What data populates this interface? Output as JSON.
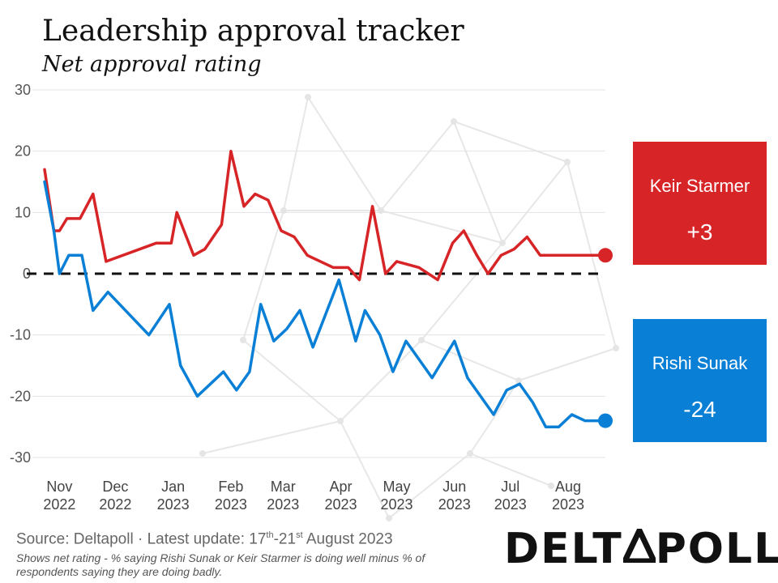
{
  "header": {
    "title": "Leadership approval tracker",
    "subtitle": "Net approval rating"
  },
  "colors": {
    "starmer": "#d62427",
    "sunak": "#0a7fd6",
    "zero_line": "#111111",
    "grid": "#e3e3e3"
  },
  "cards": {
    "starmer": {
      "name": "Keir Starmer",
      "value": "+3"
    },
    "sunak": {
      "name": "Rishi Sunak",
      "value": "-24"
    }
  },
  "footer": {
    "source_prefix": "Source: Deltapoll · Latest update: 17",
    "sup1": "th",
    "mid": "-21",
    "sup2": "st",
    "source_suffix": " August 2023",
    "note": "Shows net rating - % saying Rishi Sunak or Keir Starmer is doing well minus % of respondents saying they are doing badly.",
    "logo_left": "DELT",
    "logo_right": "POLL"
  },
  "chart_data": {
    "type": "line",
    "title": "Leadership approval tracker",
    "subtitle": "Net approval rating",
    "ylim": [
      -30,
      30
    ],
    "yticks": [
      30,
      20,
      10,
      0,
      -10,
      -20,
      -30
    ],
    "xlim": [
      "2022-10-24",
      "2023-08-21"
    ],
    "xticks": [
      {
        "date": "2022-11-01",
        "line1": "Nov",
        "line2": "2022"
      },
      {
        "date": "2022-12-01",
        "line1": "Dec",
        "line2": "2022"
      },
      {
        "date": "2023-01-01",
        "line1": "Jan",
        "line2": "2023"
      },
      {
        "date": "2023-02-01",
        "line1": "Feb",
        "line2": "2023"
      },
      {
        "date": "2023-03-01",
        "line1": "Mar",
        "line2": "2023"
      },
      {
        "date": "2023-04-01",
        "line1": "Apr",
        "line2": "2023"
      },
      {
        "date": "2023-05-01",
        "line1": "May",
        "line2": "2023"
      },
      {
        "date": "2023-06-01",
        "line1": "Jun",
        "line2": "2023"
      },
      {
        "date": "2023-07-01",
        "line1": "Jul",
        "line2": "2023"
      },
      {
        "date": "2023-08-01",
        "line1": "Aug",
        "line2": "2023"
      }
    ],
    "grid": true,
    "zero_line": "dashed",
    "series": [
      {
        "name": "Keir Starmer",
        "color": "#d62427",
        "points": [
          [
            "2022-10-24",
            17
          ],
          [
            "2022-10-29",
            7
          ],
          [
            "2022-11-01",
            7
          ],
          [
            "2022-11-05",
            9
          ],
          [
            "2022-11-12",
            9
          ],
          [
            "2022-11-19",
            13
          ],
          [
            "2022-11-26",
            2
          ],
          [
            "2022-12-23",
            5
          ],
          [
            "2022-12-31",
            5
          ],
          [
            "2023-01-03",
            10
          ],
          [
            "2023-01-12",
            3
          ],
          [
            "2023-01-18",
            4
          ],
          [
            "2023-01-27",
            8
          ],
          [
            "2023-02-01",
            20
          ],
          [
            "2023-02-08",
            11
          ],
          [
            "2023-02-14",
            13
          ],
          [
            "2023-02-21",
            12
          ],
          [
            "2023-02-28",
            7
          ],
          [
            "2023-03-07",
            6
          ],
          [
            "2023-03-14",
            3
          ],
          [
            "2023-03-28",
            1
          ],
          [
            "2023-04-05",
            1
          ],
          [
            "2023-04-11",
            -1
          ],
          [
            "2023-04-18",
            11
          ],
          [
            "2023-04-25",
            0
          ],
          [
            "2023-05-01",
            2
          ],
          [
            "2023-05-13",
            1
          ],
          [
            "2023-05-23",
            -1
          ],
          [
            "2023-05-31",
            5
          ],
          [
            "2023-06-06",
            7
          ],
          [
            "2023-06-13",
            3
          ],
          [
            "2023-06-19",
            0
          ],
          [
            "2023-06-26",
            3
          ],
          [
            "2023-07-03",
            4
          ],
          [
            "2023-07-10",
            6
          ],
          [
            "2023-07-17",
            3
          ],
          [
            "2023-08-02",
            3
          ],
          [
            "2023-08-21",
            3
          ]
        ]
      },
      {
        "name": "Rishi Sunak",
        "color": "#0a7fd6",
        "points": [
          [
            "2022-10-24",
            15
          ],
          [
            "2022-10-29",
            7
          ],
          [
            "2022-11-01",
            0
          ],
          [
            "2022-11-06",
            3
          ],
          [
            "2022-11-13",
            3
          ],
          [
            "2022-11-19",
            -6
          ],
          [
            "2022-11-27",
            -3
          ],
          [
            "2022-12-19",
            -10
          ],
          [
            "2022-12-30",
            -5
          ],
          [
            "2023-01-05",
            -15
          ],
          [
            "2023-01-14",
            -20
          ],
          [
            "2023-01-21",
            -18
          ],
          [
            "2023-01-28",
            -16
          ],
          [
            "2023-02-04",
            -19
          ],
          [
            "2023-02-11",
            -16
          ],
          [
            "2023-02-17",
            -5
          ],
          [
            "2023-02-24",
            -11
          ],
          [
            "2023-03-03",
            -9
          ],
          [
            "2023-03-10",
            -6
          ],
          [
            "2023-03-17",
            -12
          ],
          [
            "2023-03-31",
            -1
          ],
          [
            "2023-04-09",
            -11
          ],
          [
            "2023-04-14",
            -6
          ],
          [
            "2023-04-22",
            -10
          ],
          [
            "2023-04-29",
            -16
          ],
          [
            "2023-05-06",
            -11
          ],
          [
            "2023-05-20",
            -17
          ],
          [
            "2023-06-01",
            -11
          ],
          [
            "2023-06-08",
            -17
          ],
          [
            "2023-06-22",
            -23
          ],
          [
            "2023-06-29",
            -19
          ],
          [
            "2023-07-06",
            -18
          ],
          [
            "2023-07-13",
            -21
          ],
          [
            "2023-07-20",
            -25
          ],
          [
            "2023-07-27",
            -25
          ],
          [
            "2023-08-03",
            -23
          ],
          [
            "2023-08-10",
            -24
          ],
          [
            "2023-08-21",
            -24
          ]
        ]
      }
    ],
    "labels": [
      {
        "series": "Keir Starmer",
        "text": "+3"
      },
      {
        "series": "Rishi Sunak",
        "text": "-24"
      }
    ]
  }
}
